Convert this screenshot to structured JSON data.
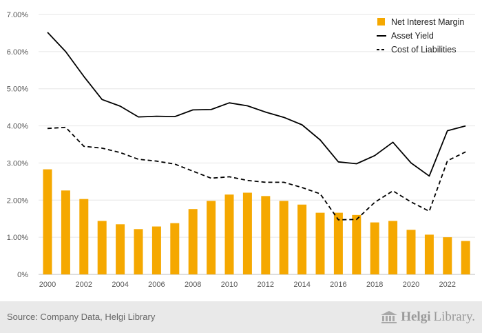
{
  "chart_data": {
    "type": "bar",
    "x": [
      2000,
      2001,
      2002,
      2003,
      2004,
      2005,
      2006,
      2007,
      2008,
      2009,
      2010,
      2011,
      2012,
      2013,
      2014,
      2015,
      2016,
      2017,
      2018,
      2019,
      2020,
      2021,
      2022,
      2023
    ],
    "x_tick_labels": [
      "2000",
      "2002",
      "2004",
      "2006",
      "2008",
      "2010",
      "2012",
      "2014",
      "2016",
      "2018",
      "2020",
      "2022"
    ],
    "y_tick_labels": [
      "0%",
      "1.00%",
      "2.00%",
      "3.00%",
      "4.00%",
      "5.00%",
      "6.00%",
      "7.00%"
    ],
    "ylim": [
      0,
      7
    ],
    "grid": true,
    "legend_position": "top-right",
    "series": [
      {
        "name": "Net Interest Margin",
        "type": "bar",
        "color": "#f5a800",
        "values": [
          2.83,
          2.26,
          2.03,
          1.44,
          1.35,
          1.22,
          1.29,
          1.38,
          1.76,
          1.98,
          2.15,
          2.2,
          2.11,
          1.98,
          1.88,
          1.66,
          1.66,
          1.6,
          1.4,
          1.44,
          1.2,
          1.07,
          1.0,
          0.9
        ]
      },
      {
        "name": "Asset Yield",
        "type": "line",
        "style": "solid",
        "color": "#000000",
        "values": [
          6.52,
          6.0,
          5.33,
          4.71,
          4.53,
          4.24,
          4.26,
          4.25,
          4.43,
          4.44,
          4.62,
          4.54,
          4.37,
          4.23,
          4.03,
          3.62,
          3.03,
          2.98,
          3.2,
          3.56,
          3.0,
          2.65,
          3.87,
          4.0
        ]
      },
      {
        "name": "Cost of Liabilities",
        "type": "line",
        "style": "dashed",
        "color": "#000000",
        "values": [
          3.93,
          3.96,
          3.45,
          3.4,
          3.28,
          3.1,
          3.05,
          2.97,
          2.78,
          2.59,
          2.63,
          2.53,
          2.48,
          2.48,
          2.34,
          2.17,
          1.47,
          1.48,
          1.94,
          2.25,
          1.95,
          1.7,
          3.06,
          3.3
        ]
      }
    ]
  },
  "footer": {
    "source": "Source: Company Data, Helgi Library",
    "logo_part1": "Helgi",
    "logo_part2": "Library."
  }
}
